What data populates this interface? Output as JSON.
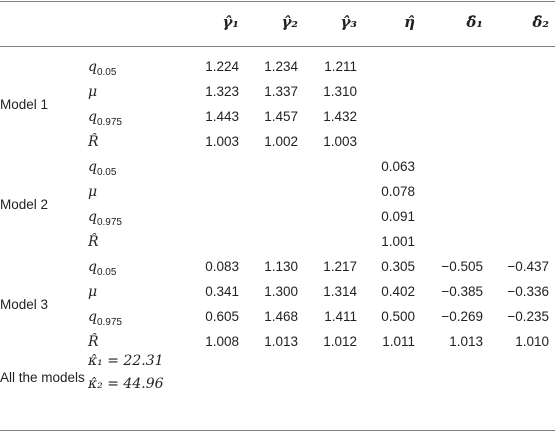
{
  "headers": [
    "γ̂₁",
    "γ̂₂",
    "γ̂₃",
    "η̂",
    "δ̂₁",
    "δ̂₂"
  ],
  "stats": [
    {
      "sym": "q",
      "sub": "0.05"
    },
    {
      "sym": "μ",
      "sub": ""
    },
    {
      "sym": "q",
      "sub": "0.975"
    },
    {
      "sym": "R̂",
      "sub": ""
    }
  ],
  "models": [
    {
      "label": "Model 1",
      "rows": [
        [
          "1.224",
          "1.234",
          "1.211",
          "",
          "",
          ""
        ],
        [
          "1.323",
          "1.337",
          "1.310",
          "",
          "",
          ""
        ],
        [
          "1.443",
          "1.457",
          "1.432",
          "",
          "",
          ""
        ],
        [
          "1.003",
          "1.002",
          "1.003",
          "",
          "",
          ""
        ]
      ]
    },
    {
      "label": "Model 2",
      "rows": [
        [
          "",
          "",
          "",
          "0.063",
          "",
          ""
        ],
        [
          "",
          "",
          "",
          "0.078",
          "",
          ""
        ],
        [
          "",
          "",
          "",
          "0.091",
          "",
          ""
        ],
        [
          "",
          "",
          "",
          "1.001",
          "",
          ""
        ]
      ]
    },
    {
      "label": "Model 3",
      "rows": [
        [
          "0.083",
          "1.130",
          "1.217",
          "0.305",
          "−0.505",
          "−0.437"
        ],
        [
          "0.341",
          "1.300",
          "1.314",
          "0.402",
          "−0.385",
          "−0.336"
        ],
        [
          "0.605",
          "1.468",
          "1.411",
          "0.500",
          "−0.269",
          "−0.235"
        ],
        [
          "1.008",
          "1.013",
          "1.012",
          "1.011",
          "1.013",
          "1.010"
        ]
      ]
    }
  ],
  "all_models": {
    "label": "All the models",
    "rows": [
      "κ̂₁ = 22.31",
      "κ̂₂ = 44.96"
    ]
  }
}
